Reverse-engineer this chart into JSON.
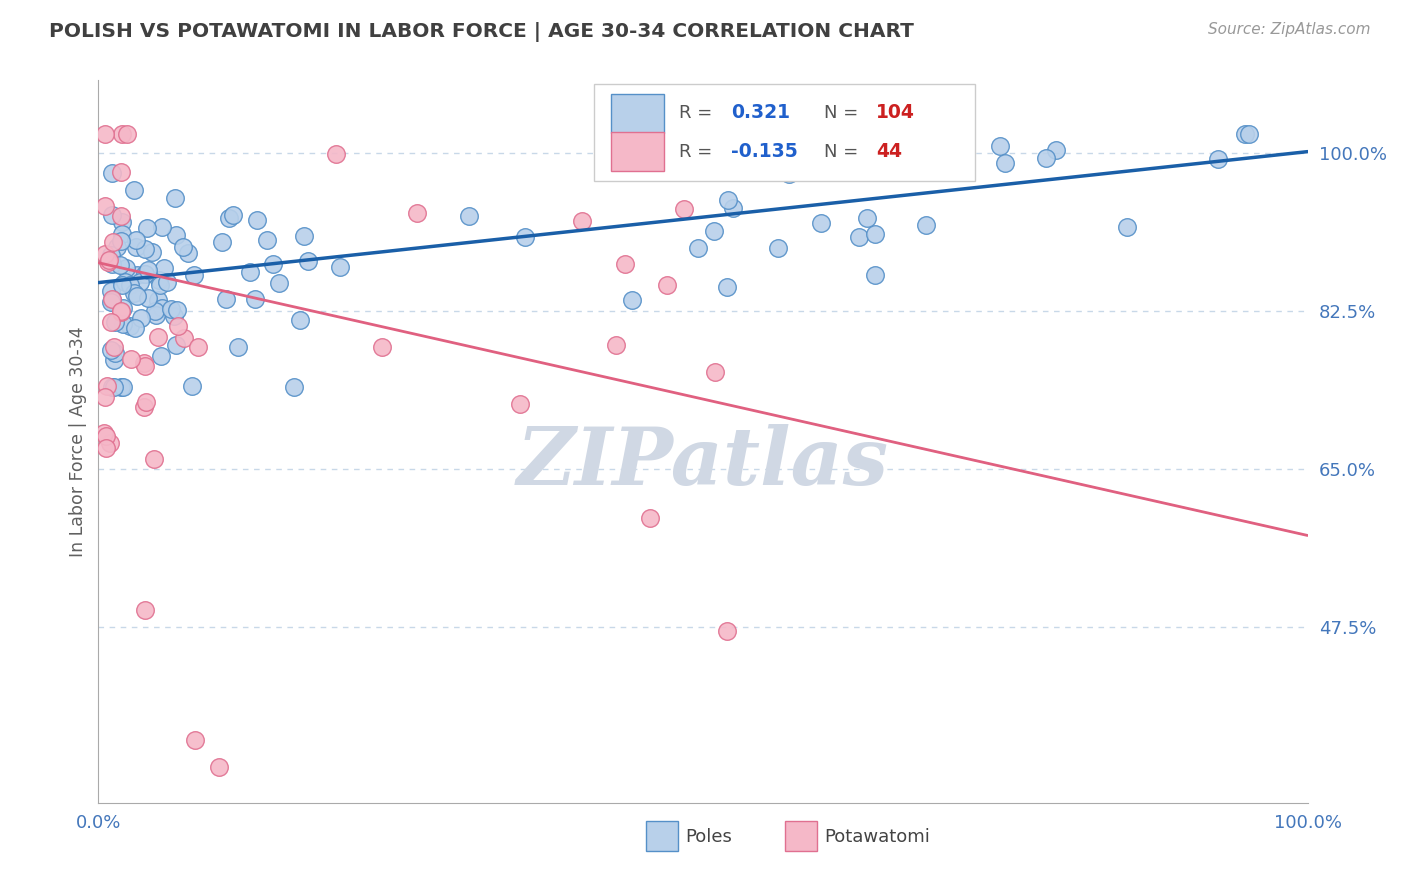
{
  "title": "POLISH VS POTAWATOMI IN LABOR FORCE | AGE 30-34 CORRELATION CHART",
  "source_text": "Source: ZipAtlas.com",
  "ylabel": "In Labor Force | Age 30-34",
  "xlim": [
    0.0,
    1.0
  ],
  "ylim": [
    0.28,
    1.08
  ],
  "yticks": [
    0.475,
    0.65,
    0.825,
    1.0
  ],
  "ytick_labels": [
    "47.5%",
    "65.0%",
    "82.5%",
    "100.0%"
  ],
  "xticks": [
    0.0,
    1.0
  ],
  "xtick_labels": [
    "0.0%",
    "100.0%"
  ],
  "blue_R": 0.321,
  "blue_N": 104,
  "pink_R": -0.135,
  "pink_N": 44,
  "blue_color": "#b8d0ea",
  "blue_line_color": "#1a5fa8",
  "pink_color": "#f5b8c8",
  "pink_line_color": "#e06080",
  "blue_edge_color": "#5590c8",
  "pink_edge_color": "#e07090",
  "legend_R_color": "#2060cc",
  "legend_N_color": "#cc2020",
  "grid_color": "#c8d8e8",
  "title_color": "#404040",
  "axis_label_color": "#4477bb",
  "watermark_color": "#d0d8e4",
  "background_color": "#ffffff",
  "blue_trend_y0": 0.856,
  "blue_trend_y1": 1.001,
  "pink_trend_y0": 0.878,
  "pink_trend_y1": 0.576
}
